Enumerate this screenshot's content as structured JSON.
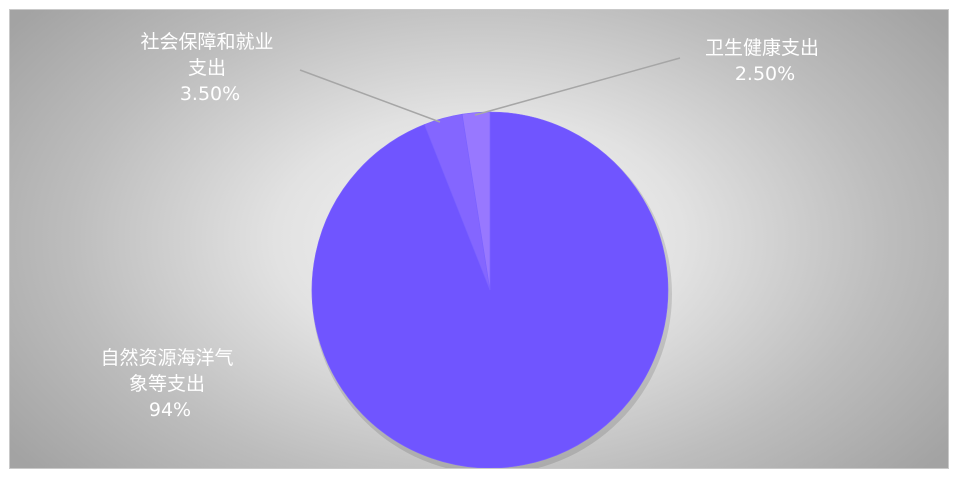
{
  "chart_data": {
    "type": "pie",
    "title": "",
    "slices": [
      {
        "label": "自然资源海洋气象等支出",
        "value": 94,
        "display": "94%",
        "color": "#7055ff"
      },
      {
        "label": "社会保障和就业支出",
        "value": 3.5,
        "display": "3.50%",
        "color": "#8466ff"
      },
      {
        "label": "卫生健康支出",
        "value": 2.5,
        "display": "2.50%",
        "color": "#9878ff"
      }
    ]
  },
  "labels": {
    "natural_line1": "自然资源海洋气",
    "natural_line2": "象等支出",
    "natural_value": "94%",
    "social_line1": "社会保障和就业",
    "social_line2": "支出",
    "social_value": "3.50%",
    "health_line1": "卫生健康支出",
    "health_value": "2.50%"
  }
}
